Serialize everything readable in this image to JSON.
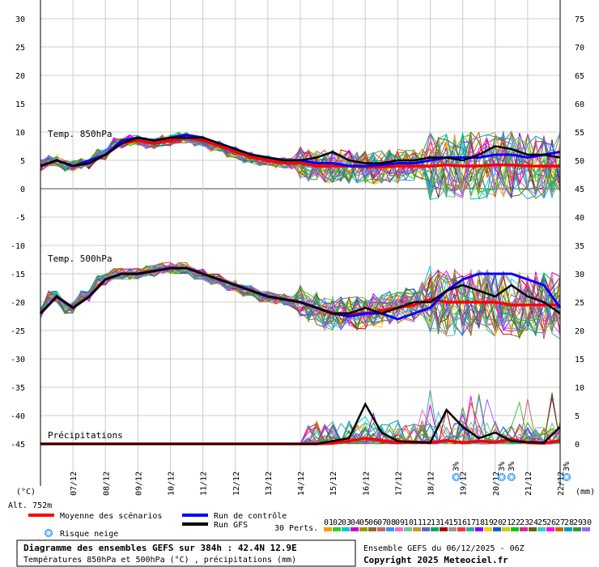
{
  "chart_data": {
    "type": "line",
    "left_axis_unit": "(°C)",
    "right_axis_unit": "(mm)",
    "left_ticks": [
      30,
      25,
      20,
      15,
      10,
      5,
      0,
      -5,
      -10,
      -15,
      -20,
      -25,
      -30,
      -35,
      -40,
      -45
    ],
    "right_ticks": [
      75,
      70,
      65,
      60,
      55,
      50,
      45,
      40,
      35,
      30,
      25,
      20,
      15,
      10,
      5,
      0
    ],
    "x_ticks": [
      "07/12",
      "08/12",
      "09/12",
      "10/12",
      "11/12",
      "12/12",
      "13/12",
      "14/12",
      "15/12",
      "16/12",
      "17/12",
      "18/12",
      "19/12",
      "20/12",
      "21/12",
      "22/12"
    ],
    "ylim_temp": [
      -45,
      30
    ],
    "ylim_precip_mm": [
      0,
      15
    ],
    "grid": true,
    "panel_labels": {
      "t850": "Temp. 850hPa",
      "t500": "Temp. 500hPa",
      "precip": "Précipitations"
    },
    "snow_days": [
      18.8,
      20.2,
      20.5,
      22.2
    ],
    "snow_labels": [
      "3%",
      "3%",
      "3%",
      "3%"
    ],
    "series": [
      {
        "name": "Moyenne des scénarios",
        "color": "#ff0000",
        "level": "850hPa",
        "x": [
          6.0,
          6.5,
          7.0,
          7.5,
          8.0,
          8.5,
          9.0,
          9.5,
          10.0,
          10.5,
          11.0,
          11.5,
          12.0,
          12.5,
          13.0,
          13.5,
          14.0,
          14.5,
          15.0,
          15.5,
          16.0,
          16.5,
          17.0,
          17.5,
          18.0,
          18.5,
          19.0,
          19.5,
          20.0,
          20.5,
          21.0,
          21.5,
          22.0
        ],
        "values": [
          4,
          5,
          4,
          4.5,
          6,
          8,
          8.5,
          8,
          8.5,
          9,
          8.5,
          7.5,
          6.5,
          5.5,
          5,
          4.5,
          4.5,
          4,
          4,
          4,
          3.8,
          3.8,
          4,
          4,
          4,
          4.2,
          4,
          4,
          4.2,
          4.2,
          4,
          4,
          4
        ]
      },
      {
        "name": "Run de contrôle",
        "color": "#0000ff",
        "level": "850hPa",
        "x": [
          6.0,
          6.5,
          7.0,
          7.5,
          8.0,
          8.5,
          9.0,
          9.5,
          10.0,
          10.5,
          11.0,
          11.5,
          12.0,
          12.5,
          13.0,
          13.5,
          14.0,
          14.5,
          15.0,
          15.5,
          16.0,
          16.5,
          17.0,
          17.5,
          18.0,
          18.5,
          19.0,
          19.5,
          20.0,
          20.5,
          21.0,
          21.5,
          22.0
        ],
        "values": [
          4,
          5,
          4,
          5,
          6,
          8.5,
          9,
          8.5,
          9,
          9.5,
          9,
          8,
          7,
          6,
          5.5,
          5,
          5,
          4.5,
          4.5,
          4,
          4,
          4.2,
          4.5,
          4.5,
          5,
          5.5,
          5.5,
          5.5,
          6,
          6,
          5.5,
          6,
          6.5
        ]
      },
      {
        "name": "Run GFS",
        "color": "#000000",
        "level": "850hPa",
        "x": [
          6.0,
          6.5,
          7.0,
          7.5,
          8.0,
          8.5,
          9.0,
          9.5,
          10.0,
          10.5,
          11.0,
          11.5,
          12.0,
          12.5,
          13.0,
          13.5,
          14.0,
          14.5,
          15.0,
          15.5,
          16.0,
          16.5,
          17.0,
          17.5,
          18.0,
          18.5,
          19.0,
          19.5,
          20.0,
          20.5,
          21.0,
          21.5,
          22.0
        ],
        "values": [
          4,
          5,
          4,
          4.5,
          6,
          8,
          9,
          8.5,
          9,
          9,
          9,
          8,
          7,
          6,
          5.5,
          5,
          5,
          5.5,
          6.5,
          5,
          4.5,
          4.5,
          5,
          5,
          5.5,
          5.5,
          5,
          6,
          7.5,
          7,
          6,
          6,
          5.5
        ]
      },
      {
        "name": "Moyenne des scénarios",
        "color": "#ff0000",
        "level": "500hPa",
        "x": [
          6.0,
          6.5,
          7.0,
          7.5,
          8.0,
          8.5,
          9.0,
          9.5,
          10.0,
          10.5,
          11.0,
          11.5,
          12.0,
          12.5,
          13.0,
          13.5,
          14.0,
          14.5,
          15.0,
          15.5,
          16.0,
          16.5,
          17.0,
          17.5,
          18.0,
          18.5,
          19.0,
          19.5,
          20.0,
          20.5,
          21.0,
          21.5,
          22.0
        ],
        "values": [
          -22,
          -19,
          -21,
          -19,
          -16,
          -15,
          -15,
          -14.5,
          -14,
          -14,
          -15,
          -16,
          -17,
          -18,
          -19,
          -19.5,
          -20,
          -21,
          -22,
          -22,
          -22,
          -21.5,
          -21,
          -20.5,
          -19.5,
          -20,
          -20,
          -20,
          -20,
          -20.5,
          -20.5,
          -20.5,
          -20.5
        ]
      },
      {
        "name": "Run de contrôle",
        "color": "#0000ff",
        "level": "500hPa",
        "x": [
          6.0,
          6.5,
          7.0,
          7.5,
          8.0,
          8.5,
          9.0,
          9.5,
          10.0,
          10.5,
          11.0,
          11.5,
          12.0,
          12.5,
          13.0,
          13.5,
          14.0,
          14.5,
          15.0,
          15.5,
          16.0,
          16.5,
          17.0,
          17.5,
          18.0,
          18.5,
          19.0,
          19.5,
          20.0,
          20.5,
          21.0,
          21.5,
          22.0
        ],
        "values": [
          -22,
          -19,
          -21,
          -19,
          -16,
          -15,
          -15,
          -14.5,
          -14,
          -14,
          -15,
          -16,
          -17,
          -18,
          -19,
          -19.5,
          -20,
          -21,
          -22,
          -22.5,
          -22,
          -22,
          -23,
          -22,
          -21,
          -18,
          -16,
          -15,
          -15,
          -15,
          -16,
          -17,
          -21
        ]
      },
      {
        "name": "Run GFS",
        "color": "#000000",
        "level": "500hPa",
        "x": [
          6.0,
          6.5,
          7.0,
          7.5,
          8.0,
          8.5,
          9.0,
          9.5,
          10.0,
          10.5,
          11.0,
          11.5,
          12.0,
          12.5,
          13.0,
          13.5,
          14.0,
          14.5,
          15.0,
          15.5,
          16.0,
          16.5,
          17.0,
          17.5,
          18.0,
          18.5,
          19.0,
          19.5,
          20.0,
          20.5,
          21.0,
          21.5,
          22.0
        ],
        "values": [
          -22,
          -19,
          -21,
          -19,
          -16,
          -15,
          -15,
          -14.5,
          -14,
          -14,
          -15,
          -16,
          -17,
          -18,
          -19,
          -19.5,
          -20,
          -21,
          -22,
          -22,
          -21,
          -22,
          -21,
          -20,
          -20,
          -18,
          -17,
          -18,
          -19,
          -17,
          -19,
          -20,
          -22
        ]
      },
      {
        "name": "Moyenne des scénarios",
        "color": "#ff0000",
        "level": "precip_mm",
        "x": [
          6.0,
          14.5,
          15.0,
          15.5,
          16.0,
          16.5,
          17.0,
          17.5,
          18.0,
          18.5,
          19.0,
          19.5,
          20.0,
          20.5,
          21.0,
          21.5,
          22.0
        ],
        "values": [
          0,
          0,
          0.1,
          0.5,
          1,
          0.6,
          0.2,
          0.3,
          0.2,
          0.6,
          0.2,
          0.5,
          0.3,
          0.8,
          0.2,
          0.1,
          0.6
        ]
      },
      {
        "name": "Run GFS",
        "color": "#000000",
        "level": "precip_mm",
        "x": [
          6.0,
          14.5,
          15.0,
          15.5,
          16.0,
          16.5,
          17.0,
          17.5,
          18.0,
          18.5,
          19.0,
          19.5,
          20.0,
          20.5,
          21.0,
          21.5,
          22.0
        ],
        "values": [
          0,
          0,
          0.5,
          1,
          7,
          2,
          0.5,
          0.3,
          0.2,
          6,
          3,
          1,
          2,
          0.5,
          0.3,
          0.2,
          3
        ]
      }
    ],
    "perturbation_colors": [
      "#ff9900",
      "#33cc33",
      "#00cccc",
      "#cc00cc",
      "#999900",
      "#996633",
      "#cc6666",
      "#3399ff",
      "#ff66cc",
      "#66cc99",
      "#cc9933",
      "#6666cc",
      "#00aa66",
      "#aa0000",
      "#999999",
      "#ff3333",
      "#33aaaa",
      "#8800ff",
      "#ffcc00",
      "#0066cc",
      "#cccc00",
      "#00cc00",
      "#cc3399",
      "#666600",
      "#33cccc",
      "#ff00ff",
      "#cc6600",
      "#0099cc",
      "#339933",
      "#9966ff"
    ]
  },
  "legend": {
    "alt": "Alt. 752m",
    "mean": "Moyenne des scénarios",
    "control": "Run de contrôle",
    "gfs": "Run GFS",
    "snow_risk": "Risque neige",
    "perts_label": "30 Perts.",
    "pert_numbers": [
      "01",
      "02",
      "03",
      "04",
      "05",
      "06",
      "07",
      "08",
      "09",
      "10",
      "11",
      "12",
      "13",
      "14",
      "15",
      "16",
      "17",
      "18",
      "19",
      "20",
      "21",
      "22",
      "23",
      "24",
      "25",
      "26",
      "27",
      "28",
      "29",
      "30"
    ]
  },
  "info": {
    "title": "Diagramme des ensembles GEFS sur 384h : 42.4N 12.9E",
    "subtitle": "Températures 850hPa et 500hPa (°C) , précipitations (mm)",
    "run": "Ensemble GEFS du 06/12/2025 - 06Z",
    "copyright": "Copyright 2025 Meteociel.fr"
  }
}
